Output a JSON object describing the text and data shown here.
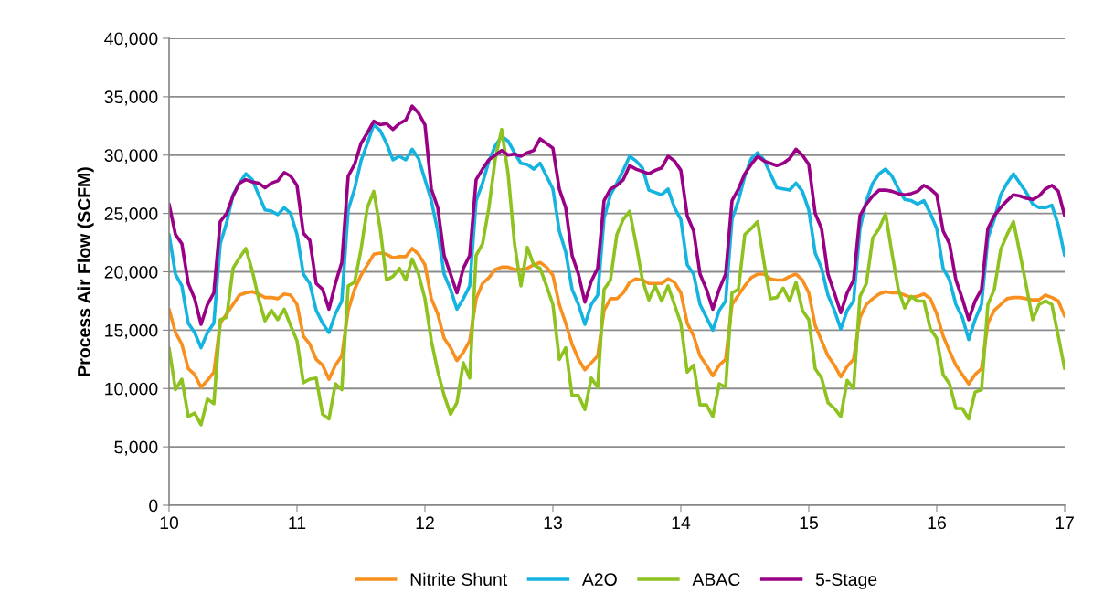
{
  "chart_data": {
    "type": "line",
    "ylabel": "Process Air Flow (SCFM)",
    "x": [
      10,
      10.05,
      10.1,
      10.15,
      10.2,
      10.25,
      10.3,
      10.35,
      10.4,
      10.45,
      10.5,
      10.55,
      10.6,
      10.65,
      10.7,
      10.75,
      10.8,
      10.85,
      10.9,
      10.95,
      11,
      11.05,
      11.1,
      11.15,
      11.2,
      11.25,
      11.3,
      11.35,
      11.4,
      11.45,
      11.5,
      11.55,
      11.6,
      11.65,
      11.7,
      11.75,
      11.8,
      11.85,
      11.9,
      11.95,
      12,
      12.05,
      12.1,
      12.15,
      12.2,
      12.25,
      12.3,
      12.35,
      12.4,
      12.45,
      12.5,
      12.55,
      12.6,
      12.65,
      12.7,
      12.75,
      12.8,
      12.85,
      12.9,
      12.95,
      13,
      13.05,
      13.1,
      13.15,
      13.2,
      13.25,
      13.3,
      13.35,
      13.4,
      13.45,
      13.5,
      13.55,
      13.6,
      13.65,
      13.7,
      13.75,
      13.8,
      13.85,
      13.9,
      13.95,
      14,
      14.05,
      14.1,
      14.15,
      14.2,
      14.25,
      14.3,
      14.35,
      14.4,
      14.45,
      14.5,
      14.55,
      14.6,
      14.65,
      14.7,
      14.75,
      14.8,
      14.85,
      14.9,
      14.95,
      15,
      15.05,
      15.1,
      15.15,
      15.2,
      15.25,
      15.3,
      15.35,
      15.4,
      15.45,
      15.5,
      15.55,
      15.6,
      15.65,
      15.7,
      15.75,
      15.8,
      15.85,
      15.9,
      15.95,
      16,
      16.05,
      16.1,
      16.15,
      16.2,
      16.25,
      16.3,
      16.35,
      16.4,
      16.45,
      16.5,
      16.55,
      16.6,
      16.65,
      16.7,
      16.75,
      16.8,
      16.85,
      16.9,
      16.95,
      17
    ],
    "series": [
      {
        "name": "Nitrite Shunt",
        "color": "#f7901e",
        "values": [
          16800,
          14800,
          13800,
          11700,
          11200,
          10100,
          10700,
          11400,
          15600,
          16400,
          17200,
          18000,
          18200,
          18300,
          18100,
          17800,
          17800,
          17700,
          18100,
          18000,
          17200,
          14500,
          13800,
          12500,
          12000,
          10800,
          12000,
          12800,
          16700,
          18500,
          19700,
          20600,
          21500,
          21600,
          21500,
          21200,
          21300,
          21300,
          22000,
          21500,
          20600,
          17700,
          16400,
          14300,
          13500,
          12400,
          13100,
          14100,
          17700,
          19000,
          19500,
          20200,
          20400,
          20400,
          20200,
          20200,
          20300,
          20600,
          20800,
          20400,
          19700,
          17200,
          15600,
          13800,
          12500,
          11600,
          12200,
          12800,
          16700,
          17700,
          17700,
          18200,
          19100,
          19400,
          19300,
          19000,
          19000,
          19000,
          19400,
          19100,
          18200,
          15600,
          14500,
          12800,
          12000,
          11100,
          12000,
          12500,
          17200,
          18000,
          18800,
          19500,
          19800,
          19800,
          19400,
          19300,
          19300,
          19600,
          19800,
          19300,
          18200,
          15400,
          14100,
          12800,
          12000,
          11000,
          11900,
          12500,
          16100,
          17200,
          17700,
          18100,
          18300,
          18200,
          18200,
          18000,
          17800,
          17900,
          18100,
          17700,
          16400,
          14500,
          13200,
          12000,
          11200,
          10400,
          11200,
          11700,
          15600,
          16700,
          17200,
          17700,
          17800,
          17800,
          17700,
          17600,
          17600,
          18000,
          17800,
          17500,
          16200
        ]
      },
      {
        "name": "A2O",
        "color": "#15b4e0",
        "values": [
          23200,
          19800,
          18800,
          15600,
          14800,
          13500,
          14800,
          15600,
          22400,
          24200,
          26600,
          27600,
          28400,
          27900,
          26600,
          25300,
          25200,
          24900,
          25500,
          25000,
          23200,
          19800,
          19000,
          16700,
          15600,
          14800,
          16400,
          17500,
          25300,
          27100,
          29500,
          31000,
          32600,
          32100,
          31000,
          29600,
          29900,
          29600,
          30500,
          29700,
          27900,
          26100,
          23500,
          19800,
          18500,
          16800,
          17700,
          18800,
          26100,
          27600,
          29500,
          30800,
          31600,
          31200,
          30200,
          29300,
          29200,
          28800,
          29300,
          28200,
          27100,
          23500,
          21700,
          18500,
          17200,
          15500,
          17200,
          18000,
          24600,
          26600,
          27600,
          28700,
          29900,
          29500,
          28900,
          27000,
          26800,
          26600,
          27100,
          25500,
          24500,
          20600,
          19800,
          17200,
          16100,
          15000,
          16700,
          17500,
          24500,
          26100,
          28200,
          29700,
          30200,
          29600,
          28400,
          27200,
          27100,
          27000,
          27600,
          26900,
          25300,
          21600,
          20300,
          18000,
          16700,
          15100,
          16700,
          17500,
          23700,
          26100,
          27600,
          28400,
          28800,
          28200,
          27100,
          26200,
          26100,
          25800,
          26100,
          25000,
          23700,
          20300,
          19300,
          17200,
          16100,
          14200,
          15900,
          17200,
          22900,
          24500,
          26600,
          27600,
          28400,
          27600,
          26800,
          25800,
          25500,
          25500,
          25700,
          24000,
          21400
        ]
      },
      {
        "name": "ABAC",
        "color": "#8dc21f",
        "values": [
          13500,
          9900,
          10800,
          7600,
          7900,
          6900,
          9100,
          8700,
          15900,
          16100,
          20300,
          21200,
          22000,
          20100,
          17700,
          15800,
          16700,
          15900,
          16800,
          15400,
          14100,
          10500,
          10800,
          10900,
          7800,
          7400,
          10400,
          9900,
          18800,
          19100,
          21900,
          25500,
          26900,
          23700,
          19300,
          19600,
          20300,
          19300,
          21100,
          19800,
          17700,
          14100,
          11500,
          9400,
          7800,
          8800,
          12200,
          10900,
          21400,
          22400,
          25500,
          29700,
          32200,
          28400,
          22400,
          18800,
          22100,
          20600,
          20300,
          18800,
          17200,
          12500,
          13500,
          9400,
          9400,
          8200,
          10900,
          10100,
          18500,
          19300,
          23200,
          24500,
          25200,
          22400,
          19300,
          17600,
          18800,
          17500,
          18800,
          17200,
          15600,
          11400,
          12000,
          8600,
          8600,
          7600,
          10400,
          10100,
          18200,
          18500,
          23200,
          23700,
          24300,
          20800,
          17700,
          17800,
          18600,
          17500,
          19100,
          16700,
          15900,
          11700,
          10900,
          8800,
          8300,
          7600,
          10700,
          10000,
          17900,
          19000,
          22900,
          23700,
          25000,
          21600,
          18500,
          16900,
          17900,
          17500,
          17500,
          15100,
          14300,
          11200,
          10400,
          8300,
          8300,
          7400,
          9700,
          9900,
          17200,
          18500,
          21900,
          23200,
          24300,
          21600,
          18800,
          15900,
          17200,
          17500,
          17200,
          14500,
          11700
        ]
      },
      {
        "name": "5-Stage",
        "color": "#990085",
        "values": [
          25800,
          23200,
          22400,
          19000,
          17700,
          15500,
          17200,
          18200,
          24300,
          25000,
          26500,
          27600,
          27900,
          27700,
          27600,
          27200,
          27600,
          27800,
          28500,
          28200,
          27400,
          23300,
          22700,
          19000,
          18500,
          16800,
          19000,
          20800,
          28200,
          29200,
          31000,
          31900,
          32900,
          32600,
          32700,
          32200,
          32700,
          33000,
          34200,
          33600,
          32600,
          27100,
          25500,
          21400,
          19800,
          18200,
          20300,
          21400,
          27900,
          28800,
          29600,
          30000,
          30400,
          30000,
          30100,
          29900,
          30200,
          30400,
          31400,
          31000,
          30600,
          27100,
          25500,
          21400,
          19800,
          17400,
          19200,
          20300,
          26100,
          27100,
          27400,
          27900,
          29100,
          28800,
          28600,
          28400,
          28700,
          28900,
          29900,
          29500,
          28700,
          24800,
          23500,
          19800,
          18500,
          16800,
          18500,
          19800,
          26100,
          27100,
          28400,
          29200,
          29900,
          29500,
          29300,
          29100,
          29300,
          29700,
          30500,
          30000,
          29200,
          25000,
          23700,
          19800,
          18200,
          16500,
          18200,
          19300,
          24800,
          25800,
          26500,
          27000,
          27000,
          26900,
          26700,
          26600,
          26700,
          26900,
          27400,
          27100,
          26600,
          23500,
          22400,
          19300,
          17700,
          15900,
          17500,
          18500,
          23700,
          24800,
          25500,
          26100,
          26600,
          26500,
          26300,
          26200,
          26500,
          27100,
          27400,
          26900,
          24800
        ]
      }
    ],
    "xlim": [
      10,
      17
    ],
    "xticks": [
      10,
      11,
      12,
      13,
      14,
      15,
      16,
      17
    ],
    "ylim": [
      0,
      40000
    ],
    "yticks": [
      {
        "value": 0,
        "label": "0"
      },
      {
        "value": 5000,
        "label": "5,000"
      },
      {
        "value": 10000,
        "label": "10,000"
      },
      {
        "value": 15000,
        "label": "15,000"
      },
      {
        "value": 20000,
        "label": "20,000"
      },
      {
        "value": 25000,
        "label": "25,000"
      },
      {
        "value": 30000,
        "label": "30,000"
      },
      {
        "value": 35000,
        "label": "35,000"
      },
      {
        "value": 40000,
        "label": "40,000"
      }
    ],
    "grid": "y",
    "legend": "bottom",
    "marker": "none",
    "line_style": "solid"
  }
}
